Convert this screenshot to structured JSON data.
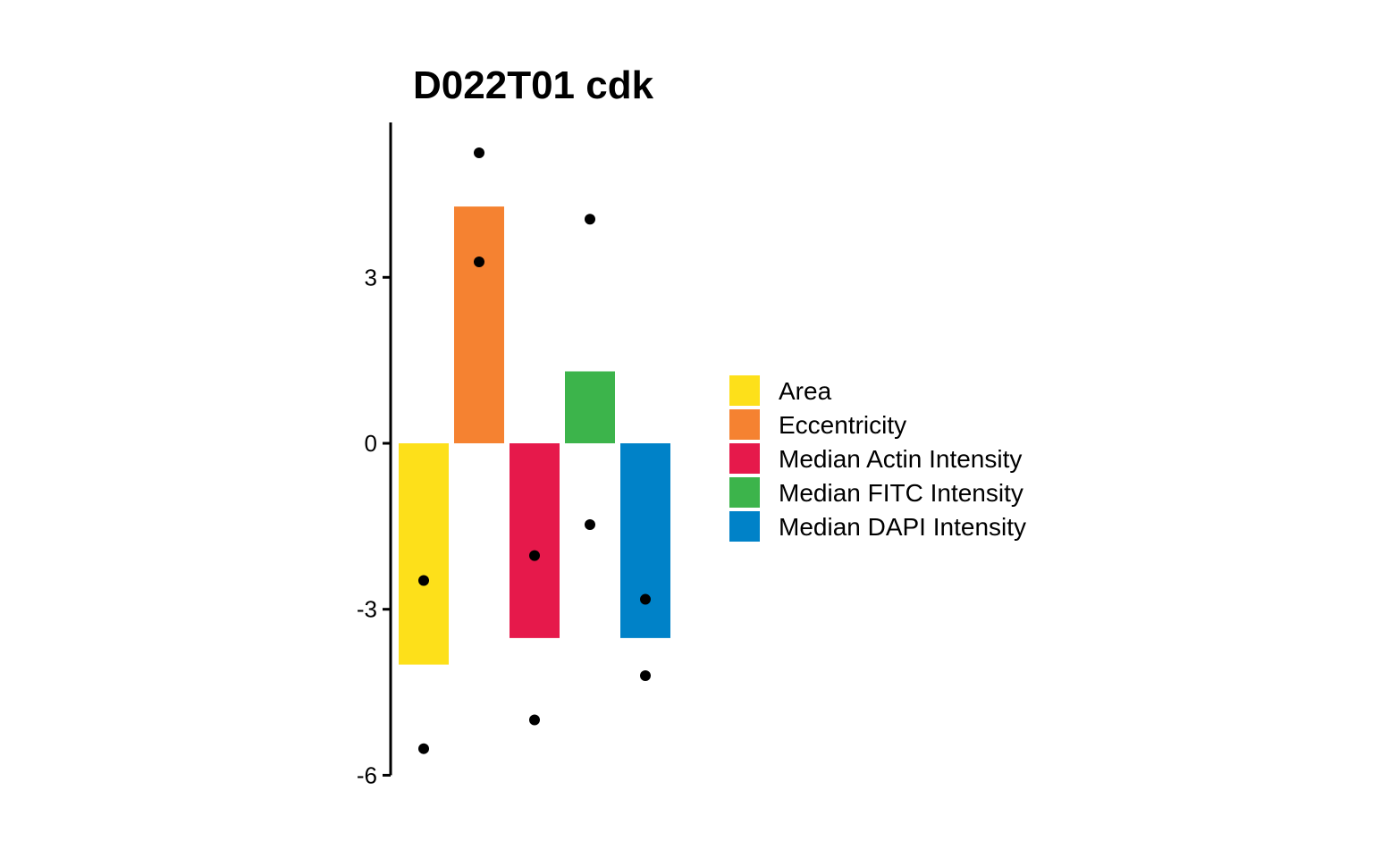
{
  "chart_data": {
    "type": "bar",
    "title": "D022T01 cdk",
    "xlabel": "",
    "ylabel": "",
    "ylim": [
      -6,
      5.7
    ],
    "yticks": [
      {
        "value": 3,
        "label": "3"
      },
      {
        "value": 0,
        "label": "0"
      },
      {
        "value": -3,
        "label": "-3"
      },
      {
        "value": -6,
        "label": "-6"
      }
    ],
    "grid": false,
    "legend_position": "right",
    "series": [
      {
        "name": "Area",
        "value": -4.0,
        "color": "#FDE01A",
        "points": [
          -2.48,
          -5.52
        ]
      },
      {
        "name": "Eccentricity",
        "value": 4.28,
        "color": "#F58231",
        "points": [
          5.25,
          3.28
        ]
      },
      {
        "name": "Median Actin Intensity",
        "value": -3.52,
        "color": "#E6194B",
        "points": [
          -2.03,
          -5.0
        ]
      },
      {
        "name": "Median FITC Intensity",
        "value": 1.3,
        "color": "#3CB44B",
        "points": [
          4.05,
          -1.47
        ]
      },
      {
        "name": "Median DAPI Intensity",
        "value": -3.52,
        "color": "#0082C8",
        "points": [
          -2.82,
          -4.2
        ]
      }
    ]
  }
}
